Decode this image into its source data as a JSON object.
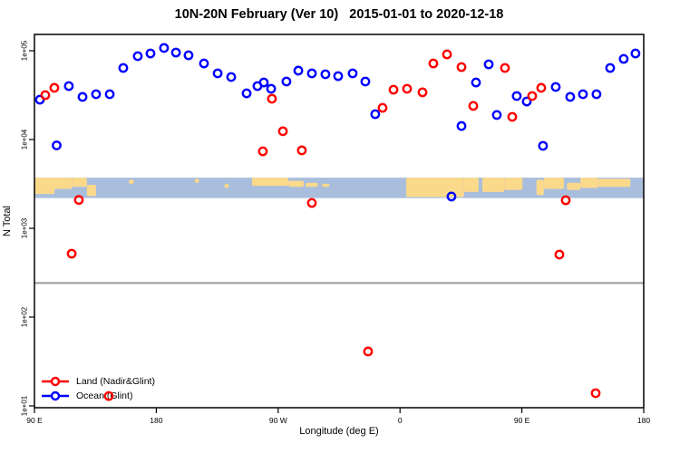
{
  "title": "10N-20N February (Ver 10)   2015-01-01 to 2020-12-18",
  "chart_data": {
    "type": "scatter",
    "title": "10N-20N February (Ver 10)   2015-01-01 to 2020-12-18",
    "xlabel": "Longitude (deg E)",
    "ylabel": "N Total",
    "x_axis": {
      "min": 90,
      "max": 540,
      "note": "longitude axis wraps: 90E to 180 eastward (540 continuous deg E)",
      "ticks": [
        {
          "value": 90,
          "label": "90 E"
        },
        {
          "value": 180,
          "label": "180"
        },
        {
          "value": 270,
          "label": "90 W"
        },
        {
          "value": 360,
          "label": "0"
        },
        {
          "value": 450,
          "label": "90 E"
        },
        {
          "value": 540,
          "label": "180"
        }
      ]
    },
    "y_axis": {
      "log": true,
      "min": 9.5,
      "max": 152000,
      "ticks": [
        {
          "value": 100000,
          "label": "1e+05"
        },
        {
          "value": 10000,
          "label": "1e+04"
        },
        {
          "value": 1000,
          "label": "1e+03"
        },
        {
          "value": 100,
          "label": "1e+02"
        },
        {
          "value": 10,
          "label": "1e+01"
        }
      ]
    },
    "grid": false,
    "threshold_line": {
      "n": 242,
      "color": "#999999"
    },
    "map_band": {
      "n_top": 3720,
      "n_bottom": 2190,
      "ocean_color": "#a9bedc",
      "land_color": "#fbd98b",
      "land_patches_pct": [
        [
          0,
          0,
          3.3,
          80
        ],
        [
          2.7,
          0,
          3.5,
          55
        ],
        [
          6.2,
          0,
          2.4,
          45
        ],
        [
          8.6,
          35,
          1.5,
          55
        ],
        [
          15.5,
          10,
          0.8,
          20
        ],
        [
          26.3,
          5,
          0.7,
          20
        ],
        [
          31.2,
          30,
          0.7,
          20
        ],
        [
          35.7,
          0,
          6,
          40
        ],
        [
          41.7,
          15,
          2.5,
          30
        ],
        [
          44.5,
          25,
          2,
          20
        ],
        [
          47.2,
          30,
          1.2,
          15
        ],
        [
          61.0,
          0,
          9.5,
          95
        ],
        [
          70.5,
          0,
          2.4,
          70
        ],
        [
          73.5,
          0,
          3.6,
          70
        ],
        [
          77.1,
          0,
          3.0,
          60
        ],
        [
          82.4,
          10,
          1.2,
          75
        ],
        [
          83.6,
          0,
          3.3,
          55
        ],
        [
          87.4,
          25,
          2.2,
          35
        ],
        [
          89.6,
          0,
          3.0,
          50
        ],
        [
          92.6,
          5,
          5.2,
          40
        ]
      ]
    },
    "legend": {
      "position": "bottom-left",
      "entries": [
        {
          "label": "Land (Nadir&Glint)",
          "color": "#ff0000"
        },
        {
          "label": "Ocean (Glint)",
          "color": "#0000ff"
        }
      ]
    },
    "series": [
      {
        "name": "Land (Nadir&Glint)",
        "color": "#ff0000",
        "marker": "open-circle",
        "points": [
          [
            98.0,
            31600
          ],
          [
            104.7,
            38200
          ],
          [
            117.5,
            518
          ],
          [
            122.8,
            2090
          ],
          [
            144.9,
            12.9
          ],
          [
            258.7,
            7360
          ],
          [
            265.4,
            28800
          ],
          [
            273.5,
            12400
          ],
          [
            287.5,
            7550
          ],
          [
            294.9,
            1930
          ],
          [
            336.4,
            41
          ],
          [
            347.1,
            22750
          ],
          [
            355.2,
            36400
          ],
          [
            365.2,
            37300
          ],
          [
            376.6,
            34000
          ],
          [
            384.6,
            71900
          ],
          [
            394.7,
            91000
          ],
          [
            405.4,
            65500
          ],
          [
            414.1,
            23900
          ],
          [
            437.5,
            64000
          ],
          [
            442.9,
            18000
          ],
          [
            457.6,
            30900
          ],
          [
            464.3,
            38200
          ],
          [
            477.7,
            506
          ],
          [
            482.4,
            2070
          ],
          [
            504.5,
            13.9
          ]
        ]
      },
      {
        "name": "Ocean (Glint)",
        "color": "#0000ff",
        "marker": "open-circle",
        "points": [
          [
            94.0,
            28100
          ],
          [
            106.4,
            8590
          ],
          [
            115.4,
            40000
          ],
          [
            125.5,
            30200
          ],
          [
            135.5,
            32400
          ],
          [
            145.6,
            32400
          ],
          [
            155.6,
            64000
          ],
          [
            166.3,
            86900
          ],
          [
            175.7,
            93100
          ],
          [
            185.7,
            107400
          ],
          [
            194.5,
            95400
          ],
          [
            203.8,
            88900
          ],
          [
            215.2,
            71900
          ],
          [
            225.3,
            55600
          ],
          [
            235.3,
            50600
          ],
          [
            246.7,
            33100
          ],
          [
            254.7,
            40000
          ],
          [
            259.4,
            43900
          ],
          [
            264.8,
            37300
          ],
          [
            276.1,
            45000
          ],
          [
            284.9,
            59700
          ],
          [
            294.9,
            55600
          ],
          [
            304.9,
            54300
          ],
          [
            314.3,
            51800
          ],
          [
            325.0,
            55600
          ],
          [
            334.4,
            45000
          ],
          [
            341.7,
            19300
          ],
          [
            398.0,
            2280
          ],
          [
            405.4,
            14200
          ],
          [
            416.1,
            43900
          ],
          [
            425.5,
            70300
          ],
          [
            431.5,
            18900
          ],
          [
            446.2,
            30900
          ],
          [
            453.6,
            26800
          ],
          [
            465.6,
            8490
          ],
          [
            475.0,
            39100
          ],
          [
            485.7,
            30200
          ],
          [
            495.1,
            32400
          ],
          [
            505.1,
            32400
          ],
          [
            515.2,
            64000
          ],
          [
            525.2,
            80900
          ],
          [
            533.9,
            93100
          ]
        ]
      }
    ]
  }
}
